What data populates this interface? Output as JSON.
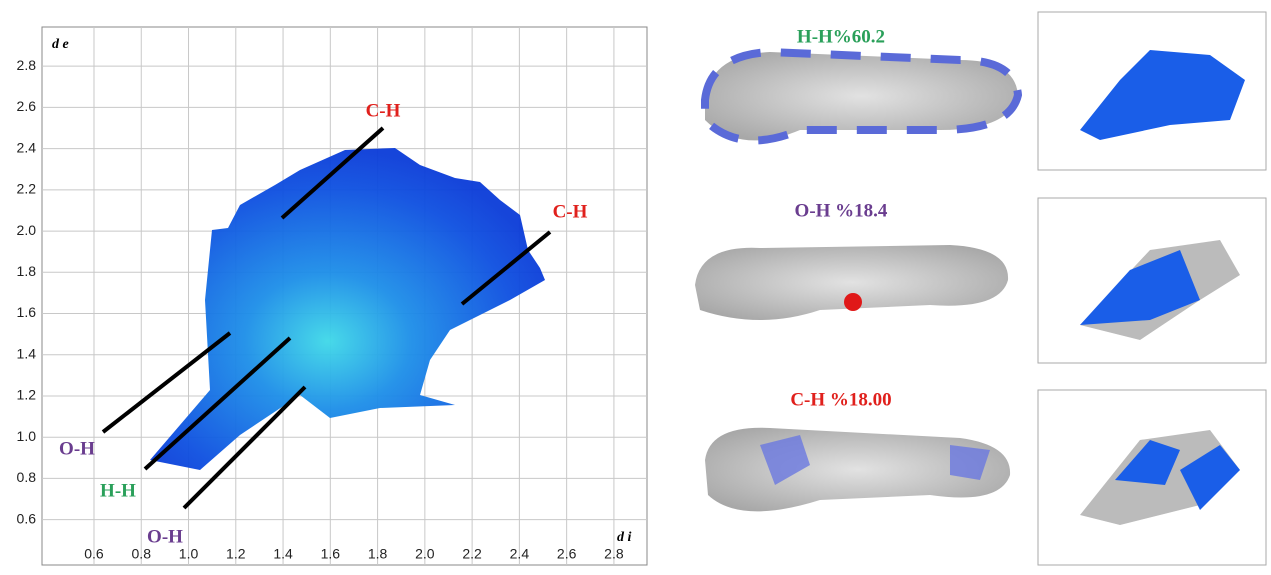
{
  "chart_data": {
    "type": "fingerprint",
    "x_label": "d i",
    "y_label": "d e",
    "xlim": [
      0.38,
      2.94
    ],
    "ylim": [
      0.38,
      2.99
    ],
    "xticks": [
      0.6,
      0.8,
      {
        "value": 1,
        "label": "1.0"
      },
      1.2,
      1.4,
      1.6,
      1.8,
      {
        "value": 2,
        "label": "2.0"
      },
      2.2,
      2.4,
      2.6,
      2.8
    ],
    "yticks": [
      0.6,
      0.8,
      {
        "value": 1,
        "label": "1.0"
      },
      1.2,
      1.4,
      1.6,
      1.8,
      {
        "value": 2,
        "label": "2.0"
      },
      2.2,
      2.4,
      2.6,
      2.8
    ],
    "grid": true,
    "annotations": [
      {
        "text": "C-H",
        "color": "#e0201c"
      },
      {
        "text": "C-H",
        "color": "#e0201c"
      },
      {
        "text": "O-H",
        "color": "#6a3d8f"
      },
      {
        "text": "H-H",
        "color": "#2aa05a"
      },
      {
        "text": "O-H",
        "color": "#6a3d8f"
      }
    ],
    "panels": [
      {
        "label": "H-H%60.2",
        "color": "#2aa05a"
      },
      {
        "label": "O-H %18.4",
        "color": "#6a3d8f"
      },
      {
        "label": "C-H %18.00",
        "color": "#e0201c"
      }
    ]
  }
}
